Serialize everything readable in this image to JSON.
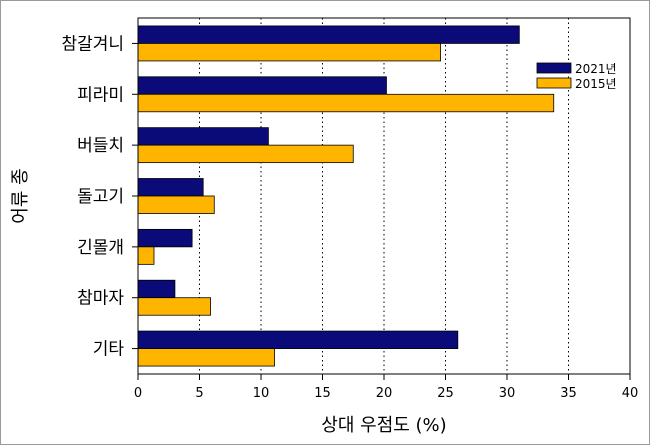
{
  "chart_data": {
    "type": "bar",
    "orientation": "horizontal",
    "categories": [
      "참갈겨니",
      "피라미",
      "버들치",
      "돌고기",
      "긴몰개",
      "참마자",
      "기타"
    ],
    "series": [
      {
        "name": "2021년",
        "color": "#0a0a78",
        "values": [
          31.0,
          20.2,
          10.6,
          5.3,
          4.4,
          3.0,
          26.0
        ]
      },
      {
        "name": "2015년",
        "color": "#ffb400",
        "values": [
          24.6,
          33.8,
          17.5,
          6.2,
          1.3,
          5.9,
          11.1
        ]
      }
    ],
    "xlabel": "상대 우점도 (%)",
    "ylabel": "어류 종",
    "xlim": [
      0,
      40
    ],
    "xticks": [
      0,
      5,
      10,
      15,
      20,
      25,
      30,
      35,
      40
    ],
    "gridlines": "vertical dotted at major ticks",
    "legend_position": "top-right"
  }
}
